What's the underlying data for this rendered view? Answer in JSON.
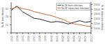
{
  "chart_data": {
    "type": "line",
    "x": [
      1993,
      1994,
      1995,
      1996,
      1997,
      1998,
      1999,
      2000,
      2001,
      2002,
      2003,
      2004,
      2005,
      2006,
      2007
    ],
    "xlim": [
      1993,
      2007
    ],
    "xticks": [
      1993,
      1994,
      1995,
      1996,
      1997,
      1998,
      1999,
      2000,
      2001,
      2002,
      2003,
      2004,
      2005,
      2006,
      2007
    ],
    "ylim": [
      0,
      38
    ],
    "yticks": [
      0,
      10,
      20,
      30
    ],
    "y2lim": [
      800,
      2100
    ],
    "y2ticks": [
      1000,
      1200,
      1400,
      1600,
      1800,
      2000
    ],
    "ylabel": "No. M. bovis infections",
    "y2label": "No. M. tuberculosis infections",
    "legend": "upper right",
    "grid": false,
    "series": [
      {
        "name": "No. M. bovis infections",
        "color": "#2a2a2a",
        "values": [
          28,
          33,
          26,
          22,
          18,
          17,
          15,
          13,
          14,
          13,
          11,
          13,
          15,
          13,
          14
        ]
      },
      {
        "name": "No. M. tuberculosis infections",
        "color": "#d4673a",
        "axis": "y2",
        "values": [
          1800,
          1900,
          1820,
          1780,
          1700,
          1640,
          1580,
          1530,
          1450,
          1380,
          1260,
          1180,
          1140,
          1100,
          1060
        ]
      }
    ]
  }
}
